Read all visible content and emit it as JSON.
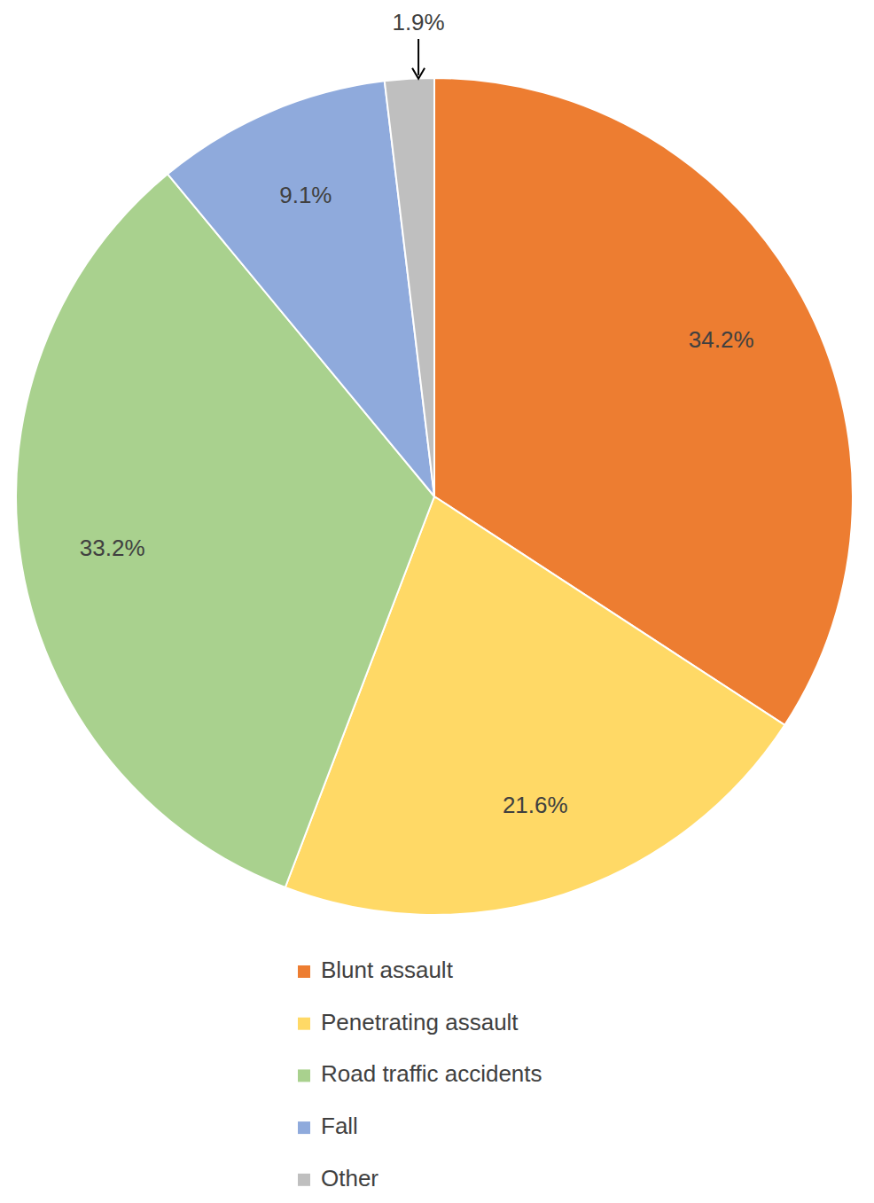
{
  "chart_data": {
    "type": "pie",
    "categories": [
      "Blunt assault",
      "Penetrating assault",
      "Road traffic accidents",
      "Fall",
      "Other"
    ],
    "values": [
      34.2,
      21.6,
      33.2,
      9.1,
      1.9
    ],
    "value_labels": [
      "34.2%",
      "21.6%",
      "33.2%",
      "9.1%",
      "1.9%"
    ],
    "colors": [
      "#ED7D31",
      "#FFD966",
      "#A9D18E",
      "#8FAADC",
      "#BFBFBF"
    ],
    "data_labels": true,
    "legend": "bottom"
  }
}
